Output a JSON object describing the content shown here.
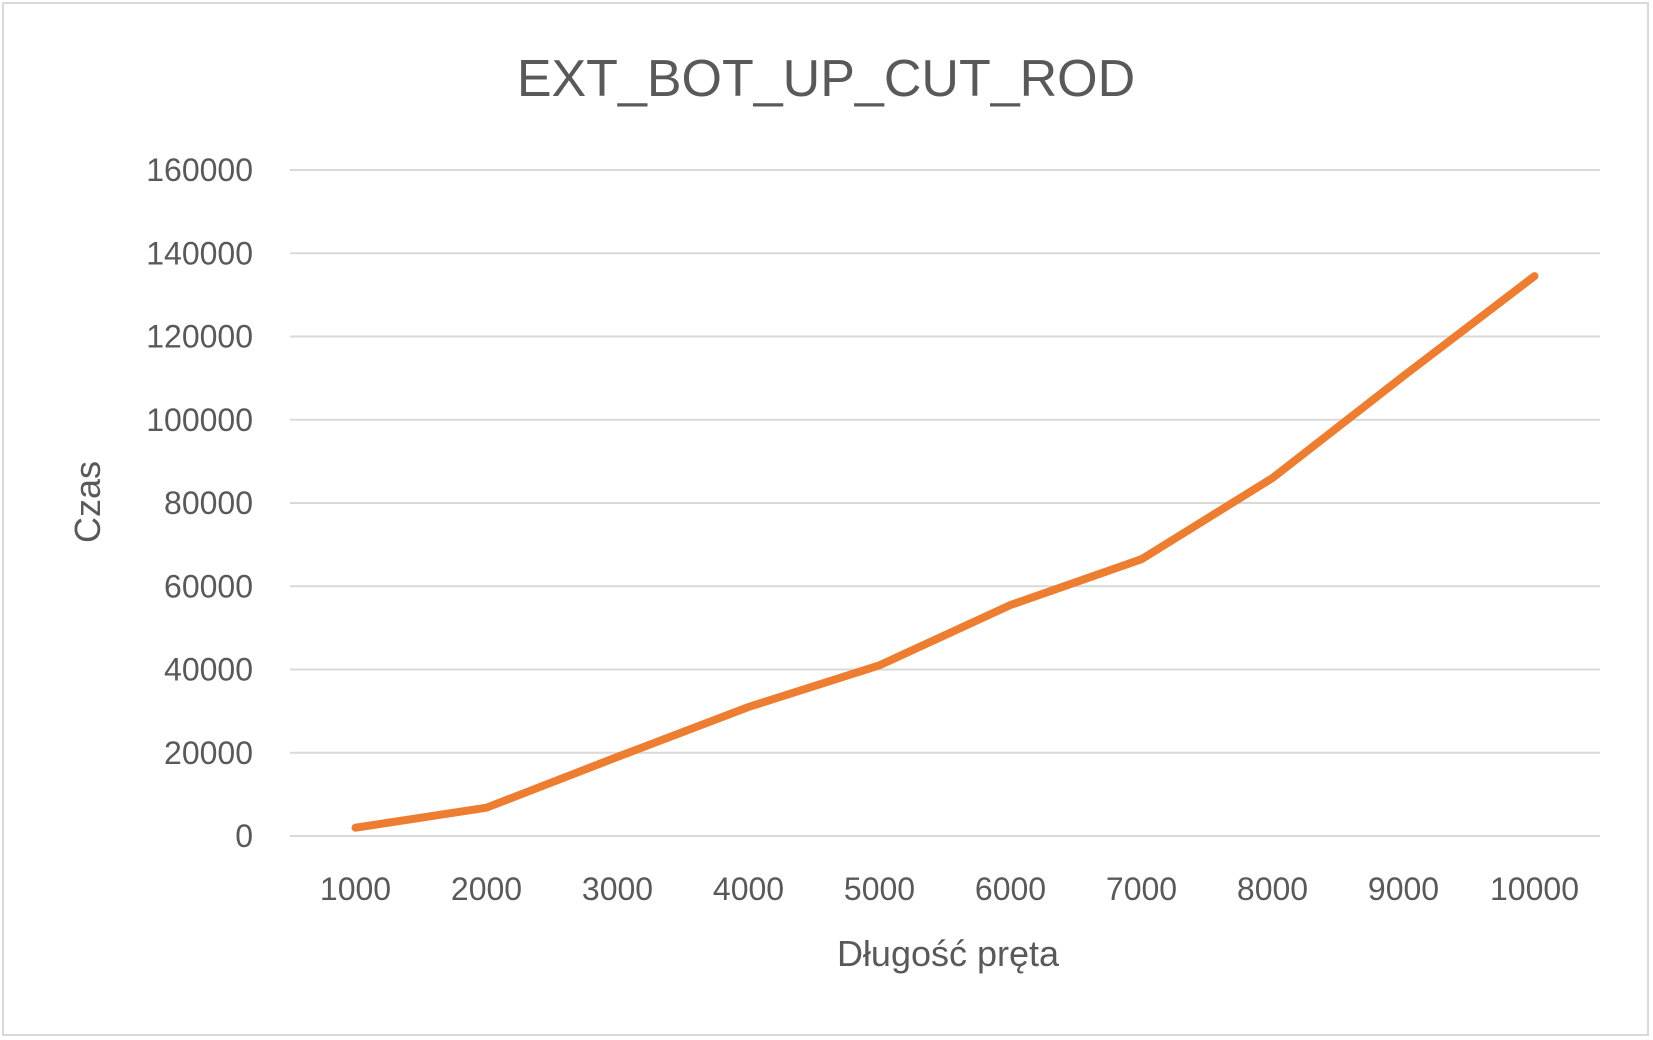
{
  "chart_data": {
    "type": "line",
    "title": "EXT_BOT_UP_CUT_ROD",
    "xlabel": "Długość pręta",
    "ylabel": "Czas",
    "categories": [
      "1000",
      "2000",
      "3000",
      "4000",
      "5000",
      "6000",
      "7000",
      "8000",
      "9000",
      "10000"
    ],
    "series": [
      {
        "values": [
          2000,
          6800,
          19000,
          31000,
          41000,
          55500,
          66500,
          86000,
          110500,
          134500
        ],
        "color": "#ed7d31"
      }
    ],
    "ylim": [
      0,
      160000
    ],
    "yticks": [
      "0",
      "20000",
      "40000",
      "60000",
      "80000",
      "100000",
      "120000",
      "140000",
      "160000"
    ],
    "grid": true,
    "legend": "none"
  }
}
